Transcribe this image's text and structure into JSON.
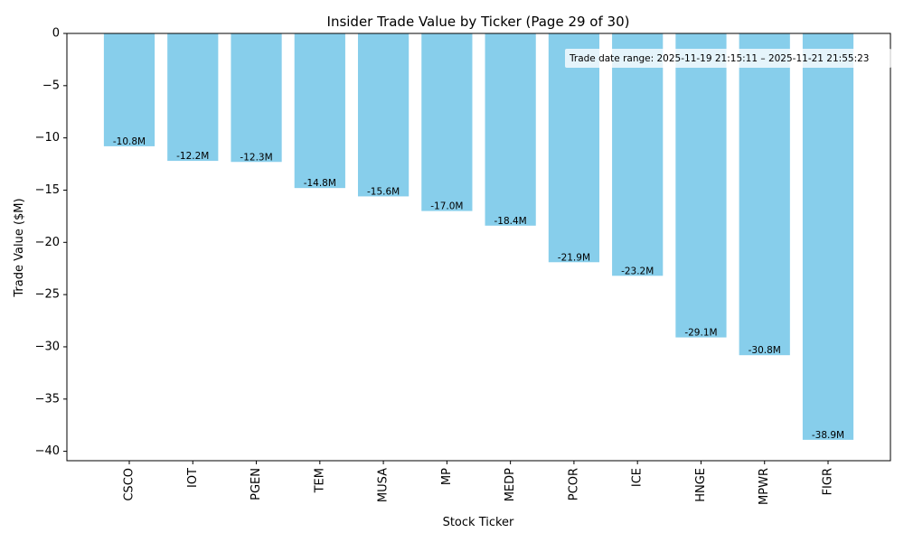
{
  "chart_data": {
    "type": "bar",
    "title": "Insider Trade Value by Ticker (Page 29 of 30)",
    "xlabel": "Stock Ticker",
    "ylabel": "Trade Value ($M)",
    "ylim": [
      -40.9,
      0
    ],
    "yticks": [
      0,
      -5,
      -10,
      -15,
      -20,
      -25,
      -30,
      -35,
      -40
    ],
    "ytick_labels": [
      "0",
      "−5",
      "−10",
      "−15",
      "−20",
      "−25",
      "−30",
      "−35",
      "−40"
    ],
    "categories": [
      "CSCO",
      "IOT",
      "PGEN",
      "TEM",
      "MUSA",
      "MP",
      "MEDP",
      "PCOR",
      "ICE",
      "HNGE",
      "MPWR",
      "FIGR"
    ],
    "values": [
      -10.8,
      -12.2,
      -12.3,
      -14.8,
      -15.6,
      -17.0,
      -18.4,
      -21.9,
      -23.2,
      -29.1,
      -30.8,
      -38.9
    ],
    "data_labels": [
      "-10.8M",
      "-12.2M",
      "-12.3M",
      "-14.8M",
      "-15.6M",
      "-17.0M",
      "-18.4M",
      "-21.9M",
      "-23.2M",
      "-29.1M",
      "-30.8M",
      "-38.9M"
    ],
    "bar_color": "#87ceeb",
    "annotation": "Trade date range: 2025-11-19 21:15:11 – 2025-11-21 21:55:23",
    "grid": false
  }
}
